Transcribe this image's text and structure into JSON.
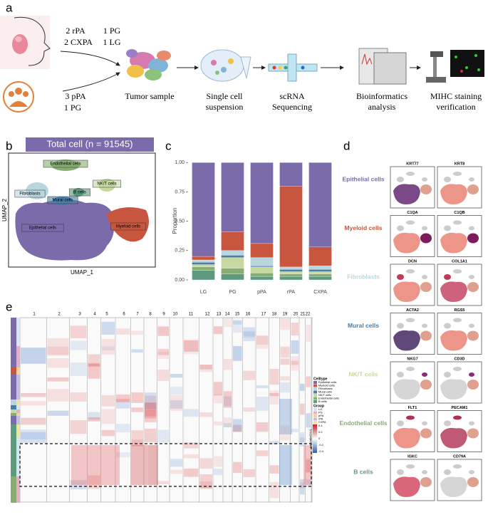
{
  "panel_a": {
    "label": "a",
    "group1": [
      "2 rPA",
      "1 PG",
      "2 CXPA",
      "1 LG"
    ],
    "group2": [
      "3 pPA",
      "1 PG"
    ],
    "steps": [
      [
        "Tumor sample"
      ],
      [
        "Single cell",
        "suspension"
      ],
      [
        "scRNA",
        "Sequencing"
      ],
      [
        "Bioinformatics",
        "analysis"
      ],
      [
        "MIHC staining",
        "verification"
      ]
    ]
  },
  "panel_b": {
    "label": "b",
    "title": "Total cell (n = 91545)",
    "xlabel": "UMAP_1",
    "ylabel": "UMAP_2",
    "clusters": [
      "Endothelial cells",
      "NK/T cells",
      "Fibroblasts",
      "B cells",
      "Mural cells",
      "Myeloid cells",
      "Epithelial cells"
    ]
  },
  "panel_c_label": "c",
  "chart_data": {
    "type": "stacked_bar",
    "ylabel": "Proportion",
    "categories": [
      "LG",
      "PG",
      "pPA",
      "rPA",
      "CXPA"
    ],
    "ylim": [
      0,
      1.05
    ],
    "yticks": [
      {
        "value": 0,
        "label": "0.00"
      },
      {
        "value": 0.25,
        "label": "0.25"
      },
      {
        "value": 0.5,
        "label": "0.50"
      },
      {
        "value": 0.75,
        "label": "0.75"
      },
      {
        "value": 1,
        "label": "1.00"
      }
    ],
    "series": [
      {
        "name": "Epithelial cells",
        "color": "#7b6bab",
        "values": [
          0.8,
          0.59,
          0.69,
          0.2,
          0.72
        ]
      },
      {
        "name": "Myeloid cells",
        "color": "#c8553d",
        "values": [
          0.03,
          0.16,
          0.12,
          0.69,
          0.16
        ]
      },
      {
        "name": "Fibroblasts",
        "color": "#b9d6df",
        "values": [
          0.02,
          0.04,
          0.07,
          0.02,
          0.03
        ]
      },
      {
        "name": "Mural cells",
        "color": "#4a7ea8",
        "values": [
          0.02,
          0.02,
          0.01,
          0.02,
          0.02
        ]
      },
      {
        "name": "NK/T cells",
        "color": "#c6d9a0",
        "values": [
          0.02,
          0.09,
          0.05,
          0.02,
          0.02
        ]
      },
      {
        "name": "Endothelial cells",
        "color": "#86ad72",
        "values": [
          0.03,
          0.05,
          0.03,
          0.02,
          0.02
        ]
      },
      {
        "name": "B cells",
        "color": "#5e9a7e",
        "values": [
          0.08,
          0.05,
          0.03,
          0.03,
          0.03
        ]
      }
    ]
  },
  "panel_d": {
    "label": "d",
    "genes": [
      [
        "KRT77",
        "KRT8"
      ],
      [
        "C1QA",
        "C1QB"
      ],
      [
        "DCN",
        "COL1A1"
      ],
      [
        "ACTA2",
        "RGS5"
      ],
      [
        "NKG7",
        "CD3D"
      ],
      [
        "FLT1",
        "PECAM1"
      ],
      [
        "IGKC",
        "CD79A"
      ]
    ]
  },
  "panel_e": {
    "label": "e",
    "columns": [
      1,
      2,
      3,
      4,
      5,
      6,
      7,
      8,
      9,
      10,
      11,
      12,
      13,
      14,
      15,
      16,
      17,
      18,
      19,
      20,
      21,
      22
    ],
    "celltype_title": "Celltype",
    "group_title": "Group",
    "groups": [
      {
        "name": "LG",
        "color": "#d6e6f4"
      },
      {
        "name": "PG",
        "color": "#e7aec6"
      },
      {
        "name": "pPA",
        "color": "#f1d79e"
      },
      {
        "name": "rPA",
        "color": "#c7bfe0"
      },
      {
        "name": "CXPA",
        "color": "#efe59c"
      }
    ],
    "colorbar_title": "log2(ratioCNV)",
    "colorbar_ticks": [
      "0.4",
      "0.2",
      "0",
      "-0.2",
      "-0.4"
    ]
  }
}
